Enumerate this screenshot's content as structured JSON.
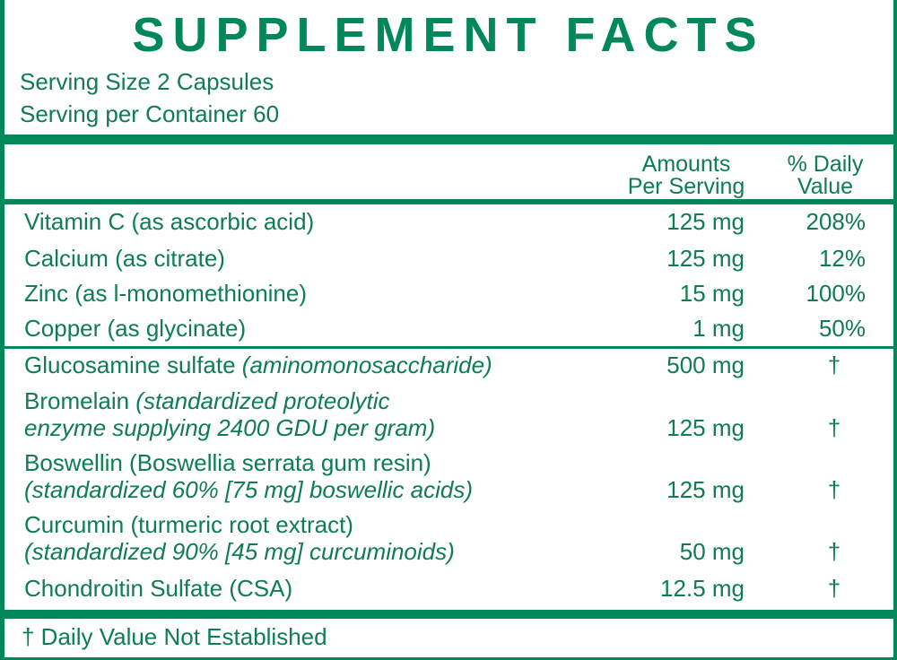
{
  "title": "SUPPLEMENT FACTS",
  "serving_size": "Serving Size 2 Capsules",
  "servings_per_container": "Serving per Container 60",
  "headers": {
    "amount_line1": "Amounts",
    "amount_line2": "Per Serving",
    "dv_line1": "% Daily",
    "dv_line2": "Value"
  },
  "nutrients": [
    {
      "name": "Vitamin C (as ascorbic acid)",
      "amount": "125 mg",
      "dv": "208%"
    },
    {
      "name": "Calcium (as citrate)",
      "amount": "125 mg",
      "dv": "12%"
    },
    {
      "name": "Zinc (as l-monomethionine)",
      "amount": "15 mg",
      "dv": "100%"
    },
    {
      "name": "Copper (as glycinate)",
      "amount": "1 mg",
      "dv": "50%"
    }
  ],
  "other": [
    {
      "name": "Glucosamine sulfate",
      "desc": "(aminomonosaccharide)",
      "amount": "500 mg",
      "dv": "†"
    },
    {
      "name": "Bromelain",
      "desc": "(standardized proteolytic",
      "desc2": "enzyme supplying 2400 GDU per gram)",
      "amount": "125 mg",
      "dv": "†"
    },
    {
      "name": "Boswellin (Boswellia serrata gum resin)",
      "desc2": "(standardized 60% [75 mg] boswellic acids)",
      "amount": "125 mg",
      "dv": "†"
    },
    {
      "name": "Curcumin (turmeric root extract)",
      "desc2": "(standardized 90% [45 mg] curcuminoids)",
      "amount": "50 mg",
      "dv": "†"
    },
    {
      "name": "Chondroitin Sulfate (CSA)",
      "amount": "12.5 mg",
      "dv": "†"
    }
  ],
  "footnote": "† Daily Value Not Established",
  "colors": {
    "accent": "#00875a"
  }
}
